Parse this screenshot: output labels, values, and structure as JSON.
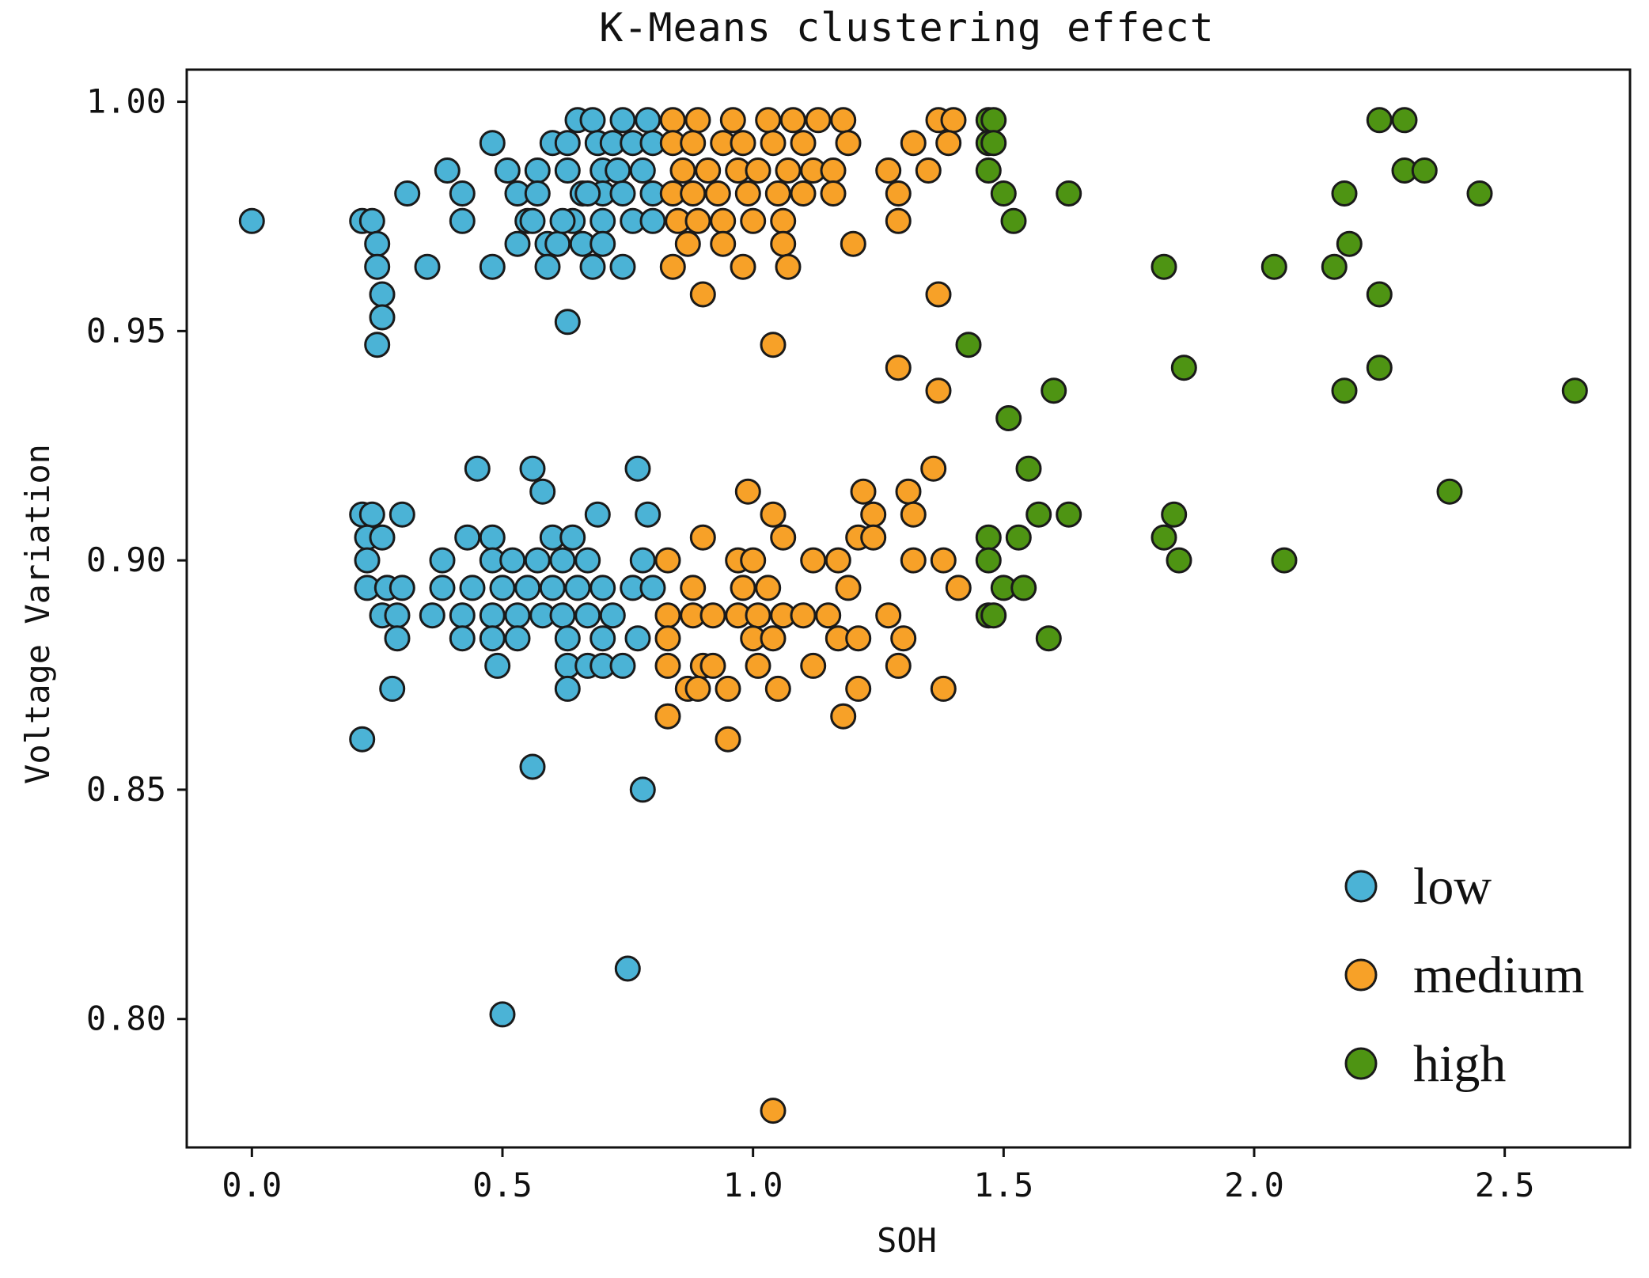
{
  "chart_data": {
    "type": "scatter",
    "title": "K-Means clustering effect",
    "xlabel": "SOH",
    "ylabel": "Voltage Variation",
    "xlim": [
      -0.13,
      2.75
    ],
    "ylim": [
      0.772,
      1.007
    ],
    "xticks": [
      0.0,
      0.5,
      1.0,
      1.5,
      2.0,
      2.5
    ],
    "xtick_labels": [
      "0.0",
      "0.5",
      "1.0",
      "1.5",
      "2.0",
      "2.5"
    ],
    "yticks": [
      0.8,
      0.85,
      0.9,
      0.95,
      1.0
    ],
    "ytick_labels": [
      "0.80",
      "0.85",
      "0.90",
      "0.95",
      "1.00"
    ],
    "grid": false,
    "legend_position": "bottom-right",
    "series": [
      {
        "name": "low",
        "color": "#4bb3d6",
        "points": [
          [
            0.0,
            0.974
          ],
          [
            0.22,
            0.974
          ],
          [
            0.24,
            0.974
          ],
          [
            0.25,
            0.969
          ],
          [
            0.25,
            0.964
          ],
          [
            0.26,
            0.958
          ],
          [
            0.26,
            0.953
          ],
          [
            0.25,
            0.947
          ],
          [
            0.31,
            0.98
          ],
          [
            0.35,
            0.964
          ],
          [
            0.39,
            0.985
          ],
          [
            0.42,
            0.98
          ],
          [
            0.42,
            0.974
          ],
          [
            0.48,
            0.991
          ],
          [
            0.48,
            0.964
          ],
          [
            0.51,
            0.985
          ],
          [
            0.53,
            0.98
          ],
          [
            0.55,
            0.974
          ],
          [
            0.53,
            0.969
          ],
          [
            0.57,
            0.985
          ],
          [
            0.57,
            0.98
          ],
          [
            0.56,
            0.974
          ],
          [
            0.59,
            0.969
          ],
          [
            0.59,
            0.964
          ],
          [
            0.6,
            0.991
          ],
          [
            0.63,
            0.991
          ],
          [
            0.65,
            0.996
          ],
          [
            0.63,
            0.985
          ],
          [
            0.66,
            0.98
          ],
          [
            0.64,
            0.974
          ],
          [
            0.66,
            0.969
          ],
          [
            0.61,
            0.969
          ],
          [
            0.62,
            0.974
          ],
          [
            0.68,
            0.996
          ],
          [
            0.69,
            0.991
          ],
          [
            0.7,
            0.985
          ],
          [
            0.7,
            0.98
          ],
          [
            0.7,
            0.974
          ],
          [
            0.7,
            0.969
          ],
          [
            0.68,
            0.964
          ],
          [
            0.72,
            0.991
          ],
          [
            0.73,
            0.985
          ],
          [
            0.74,
            0.98
          ],
          [
            0.74,
            0.996
          ],
          [
            0.76,
            0.991
          ],
          [
            0.78,
            0.985
          ],
          [
            0.76,
            0.974
          ],
          [
            0.74,
            0.964
          ],
          [
            0.79,
            0.996
          ],
          [
            0.8,
            0.991
          ],
          [
            0.8,
            0.98
          ],
          [
            0.8,
            0.974
          ],
          [
            0.63,
            0.952
          ],
          [
            0.67,
            0.98
          ],
          [
            0.45,
            0.92
          ],
          [
            0.56,
            0.92
          ],
          [
            0.58,
            0.915
          ],
          [
            0.77,
            0.92
          ],
          [
            0.69,
            0.91
          ],
          [
            0.79,
            0.91
          ],
          [
            0.22,
            0.91
          ],
          [
            0.24,
            0.91
          ],
          [
            0.3,
            0.91
          ],
          [
            0.23,
            0.905
          ],
          [
            0.26,
            0.905
          ],
          [
            0.43,
            0.905
          ],
          [
            0.48,
            0.905
          ],
          [
            0.6,
            0.905
          ],
          [
            0.64,
            0.905
          ],
          [
            0.23,
            0.9
          ],
          [
            0.38,
            0.9
          ],
          [
            0.48,
            0.9
          ],
          [
            0.52,
            0.9
          ],
          [
            0.57,
            0.9
          ],
          [
            0.62,
            0.9
          ],
          [
            0.67,
            0.9
          ],
          [
            0.78,
            0.9
          ],
          [
            0.23,
            0.894
          ],
          [
            0.27,
            0.894
          ],
          [
            0.3,
            0.894
          ],
          [
            0.38,
            0.894
          ],
          [
            0.44,
            0.894
          ],
          [
            0.5,
            0.894
          ],
          [
            0.55,
            0.894
          ],
          [
            0.6,
            0.894
          ],
          [
            0.65,
            0.894
          ],
          [
            0.7,
            0.894
          ],
          [
            0.76,
            0.894
          ],
          [
            0.8,
            0.894
          ],
          [
            0.26,
            0.888
          ],
          [
            0.29,
            0.888
          ],
          [
            0.36,
            0.888
          ],
          [
            0.42,
            0.888
          ],
          [
            0.48,
            0.888
          ],
          [
            0.53,
            0.888
          ],
          [
            0.58,
            0.888
          ],
          [
            0.62,
            0.888
          ],
          [
            0.67,
            0.888
          ],
          [
            0.72,
            0.888
          ],
          [
            0.29,
            0.883
          ],
          [
            0.42,
            0.883
          ],
          [
            0.48,
            0.883
          ],
          [
            0.53,
            0.883
          ],
          [
            0.63,
            0.883
          ],
          [
            0.7,
            0.883
          ],
          [
            0.77,
            0.883
          ],
          [
            0.49,
            0.877
          ],
          [
            0.63,
            0.877
          ],
          [
            0.67,
            0.877
          ],
          [
            0.7,
            0.877
          ],
          [
            0.74,
            0.877
          ],
          [
            0.28,
            0.872
          ],
          [
            0.63,
            0.872
          ],
          [
            0.22,
            0.861
          ],
          [
            0.56,
            0.855
          ],
          [
            0.78,
            0.85
          ],
          [
            0.5,
            0.801
          ],
          [
            0.75,
            0.811
          ]
        ]
      },
      {
        "name": "medium",
        "color": "#f7a128",
        "points": [
          [
            0.84,
            0.996
          ],
          [
            0.89,
            0.996
          ],
          [
            0.96,
            0.996
          ],
          [
            1.03,
            0.996
          ],
          [
            1.08,
            0.996
          ],
          [
            1.13,
            0.996
          ],
          [
            1.18,
            0.996
          ],
          [
            1.37,
            0.996
          ],
          [
            1.4,
            0.996
          ],
          [
            0.84,
            0.991
          ],
          [
            0.88,
            0.991
          ],
          [
            0.94,
            0.991
          ],
          [
            0.98,
            0.991
          ],
          [
            1.04,
            0.991
          ],
          [
            1.1,
            0.991
          ],
          [
            1.19,
            0.991
          ],
          [
            1.32,
            0.991
          ],
          [
            1.39,
            0.991
          ],
          [
            0.86,
            0.985
          ],
          [
            0.91,
            0.985
          ],
          [
            0.97,
            0.985
          ],
          [
            1.01,
            0.985
          ],
          [
            1.07,
            0.985
          ],
          [
            1.12,
            0.985
          ],
          [
            1.16,
            0.985
          ],
          [
            1.27,
            0.985
          ],
          [
            1.35,
            0.985
          ],
          [
            0.84,
            0.98
          ],
          [
            0.88,
            0.98
          ],
          [
            0.93,
            0.98
          ],
          [
            0.99,
            0.98
          ],
          [
            1.05,
            0.98
          ],
          [
            1.1,
            0.98
          ],
          [
            1.16,
            0.98
          ],
          [
            1.29,
            0.98
          ],
          [
            0.85,
            0.974
          ],
          [
            0.89,
            0.974
          ],
          [
            0.94,
            0.974
          ],
          [
            1.0,
            0.974
          ],
          [
            1.06,
            0.974
          ],
          [
            1.29,
            0.974
          ],
          [
            0.87,
            0.969
          ],
          [
            0.94,
            0.969
          ],
          [
            1.06,
            0.969
          ],
          [
            1.2,
            0.969
          ],
          [
            0.84,
            0.964
          ],
          [
            0.98,
            0.964
          ],
          [
            1.07,
            0.964
          ],
          [
            0.9,
            0.958
          ],
          [
            1.37,
            0.958
          ],
          [
            1.04,
            0.947
          ],
          [
            1.29,
            0.942
          ],
          [
            1.37,
            0.937
          ],
          [
            1.36,
            0.92
          ],
          [
            0.99,
            0.915
          ],
          [
            1.22,
            0.915
          ],
          [
            1.31,
            0.915
          ],
          [
            1.04,
            0.91
          ],
          [
            1.24,
            0.91
          ],
          [
            1.32,
            0.91
          ],
          [
            0.9,
            0.905
          ],
          [
            1.06,
            0.905
          ],
          [
            1.21,
            0.905
          ],
          [
            1.24,
            0.905
          ],
          [
            0.83,
            0.9
          ],
          [
            0.97,
            0.9
          ],
          [
            1.0,
            0.9
          ],
          [
            1.12,
            0.9
          ],
          [
            1.17,
            0.9
          ],
          [
            1.32,
            0.9
          ],
          [
            1.38,
            0.9
          ],
          [
            0.88,
            0.894
          ],
          [
            0.98,
            0.894
          ],
          [
            1.03,
            0.894
          ],
          [
            1.19,
            0.894
          ],
          [
            1.41,
            0.894
          ],
          [
            0.83,
            0.888
          ],
          [
            0.88,
            0.888
          ],
          [
            0.92,
            0.888
          ],
          [
            0.97,
            0.888
          ],
          [
            1.01,
            0.888
          ],
          [
            1.06,
            0.888
          ],
          [
            1.1,
            0.888
          ],
          [
            1.15,
            0.888
          ],
          [
            1.27,
            0.888
          ],
          [
            0.83,
            0.883
          ],
          [
            1.0,
            0.883
          ],
          [
            1.04,
            0.883
          ],
          [
            1.17,
            0.883
          ],
          [
            1.21,
            0.883
          ],
          [
            1.3,
            0.883
          ],
          [
            0.83,
            0.877
          ],
          [
            0.9,
            0.877
          ],
          [
            0.92,
            0.877
          ],
          [
            1.01,
            0.877
          ],
          [
            1.12,
            0.877
          ],
          [
            1.29,
            0.877
          ],
          [
            0.87,
            0.872
          ],
          [
            0.89,
            0.872
          ],
          [
            0.95,
            0.872
          ],
          [
            1.05,
            0.872
          ],
          [
            1.21,
            0.872
          ],
          [
            1.38,
            0.872
          ],
          [
            0.83,
            0.866
          ],
          [
            1.18,
            0.866
          ],
          [
            0.95,
            0.861
          ],
          [
            1.04,
            0.78
          ]
        ]
      },
      {
        "name": "high",
        "color": "#4e9413",
        "points": [
          [
            1.47,
            0.996
          ],
          [
            1.48,
            0.996
          ],
          [
            1.47,
            0.991
          ],
          [
            1.48,
            0.991
          ],
          [
            1.47,
            0.985
          ],
          [
            1.5,
            0.98
          ],
          [
            1.52,
            0.974
          ],
          [
            1.63,
            0.98
          ],
          [
            1.43,
            0.947
          ],
          [
            1.51,
            0.931
          ],
          [
            1.6,
            0.937
          ],
          [
            2.25,
            0.996
          ],
          [
            2.3,
            0.996
          ],
          [
            2.3,
            0.985
          ],
          [
            2.34,
            0.985
          ],
          [
            2.18,
            0.98
          ],
          [
            2.45,
            0.98
          ],
          [
            2.19,
            0.969
          ],
          [
            1.82,
            0.964
          ],
          [
            2.04,
            0.964
          ],
          [
            2.16,
            0.964
          ],
          [
            2.25,
            0.958
          ],
          [
            1.86,
            0.942
          ],
          [
            2.25,
            0.942
          ],
          [
            2.18,
            0.937
          ],
          [
            2.64,
            0.937
          ],
          [
            1.55,
            0.92
          ],
          [
            2.39,
            0.915
          ],
          [
            1.57,
            0.91
          ],
          [
            1.63,
            0.91
          ],
          [
            1.84,
            0.91
          ],
          [
            1.47,
            0.905
          ],
          [
            1.53,
            0.905
          ],
          [
            1.82,
            0.905
          ],
          [
            1.47,
            0.9
          ],
          [
            1.85,
            0.9
          ],
          [
            2.06,
            0.9
          ],
          [
            1.5,
            0.894
          ],
          [
            1.54,
            0.894
          ],
          [
            1.47,
            0.888
          ],
          [
            1.48,
            0.888
          ],
          [
            1.59,
            0.883
          ]
        ]
      }
    ]
  }
}
